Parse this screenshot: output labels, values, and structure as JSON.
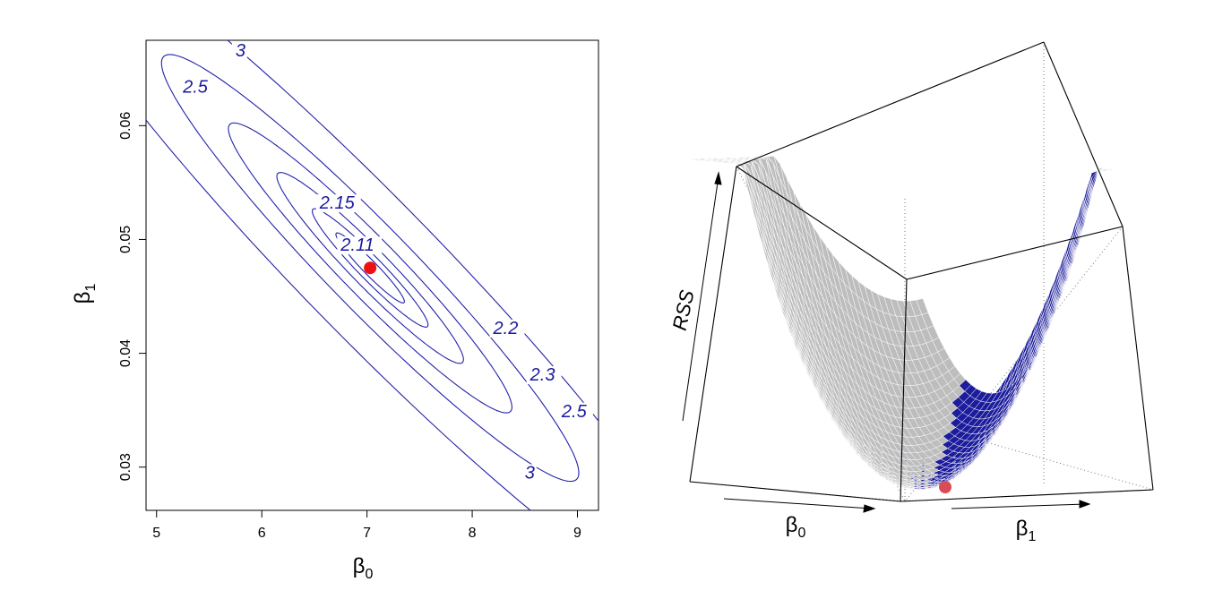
{
  "chart_data": [
    {
      "type": "contour",
      "xlabel": "β",
      "xlabel_sub": "0",
      "ylabel": "β",
      "ylabel_sub": "1",
      "xlim": [
        4.9,
        9.2
      ],
      "ylim": [
        0.0262,
        0.0675
      ],
      "xticks": [
        "5",
        "6",
        "7",
        "8",
        "9"
      ],
      "yticks": [
        "0.03",
        "0.04",
        "0.05",
        "0.06"
      ],
      "contour_levels": [
        "2.11",
        "2.15",
        "2.2",
        "2.3",
        "2.5",
        "3"
      ],
      "contour_labels": [
        {
          "text": "3",
          "x": 5.75,
          "y": 0.0661
        },
        {
          "text": "2.5",
          "x": 5.25,
          "y": 0.0629
        },
        {
          "text": "2.15",
          "x": 6.55,
          "y": 0.0527
        },
        {
          "text": "2.11",
          "x": 6.75,
          "y": 0.049
        },
        {
          "text": "2.2",
          "x": 8.2,
          "y": 0.0417
        },
        {
          "text": "2.3",
          "x": 8.55,
          "y": 0.0376
        },
        {
          "text": "2.5",
          "x": 8.85,
          "y": 0.0344
        },
        {
          "text": "3",
          "x": 8.5,
          "y": 0.029
        }
      ],
      "minimum_point": {
        "x": 7.03,
        "y": 0.0475,
        "color": "#ee1111"
      },
      "line_color": "#2222aa"
    },
    {
      "type": "surface3d",
      "zlabel": "RSS",
      "xlabel": "β",
      "xlabel_sub": "0",
      "ylabel": "β",
      "ylabel_sub": "1",
      "mesh_color": "#1c1c9c",
      "shade_color": "#bdbdbd",
      "minimum_point": {
        "color": "#d94b55"
      }
    }
  ]
}
